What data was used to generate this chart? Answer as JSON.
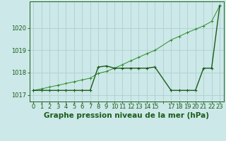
{
  "title": "Graphe pression niveau de la mer (hPa)",
  "bg_color": "#cce8e8",
  "grid_color": "#b0d0d0",
  "line_color_dark": "#1a5c1a",
  "line_color_light": "#2d8c2d",
  "x_hours_s1": [
    0,
    1,
    2,
    3,
    4,
    5,
    6,
    7,
    8,
    9,
    10,
    11,
    12,
    13,
    14,
    15,
    17,
    18,
    19,
    20,
    21,
    22,
    23
  ],
  "series1": [
    1017.2,
    1017.2,
    1017.2,
    1017.2,
    1017.2,
    1017.2,
    1017.2,
    1017.2,
    1018.25,
    1018.3,
    1018.2,
    1018.2,
    1018.2,
    1018.2,
    1018.2,
    1018.25,
    1017.2,
    1017.2,
    1017.2,
    1017.2,
    1018.2,
    1018.2,
    1021.0
  ],
  "x_hours_s2": [
    0,
    1,
    2,
    3,
    4,
    5,
    6,
    7,
    8,
    9,
    10,
    11,
    12,
    13,
    14,
    15,
    17,
    18,
    19,
    20,
    21,
    22,
    23
  ],
  "series2": [
    1017.2,
    1017.27,
    1017.35,
    1017.43,
    1017.51,
    1017.59,
    1017.67,
    1017.75,
    1017.97,
    1018.05,
    1018.2,
    1018.36,
    1018.53,
    1018.69,
    1018.85,
    1019.0,
    1019.47,
    1019.63,
    1019.8,
    1019.95,
    1020.1,
    1020.3,
    1021.0
  ],
  "ylim": [
    1016.7,
    1021.2
  ],
  "yticks": [
    1017,
    1018,
    1019,
    1020
  ],
  "xlim": [
    -0.5,
    23.5
  ],
  "marker_size": 2.5,
  "title_fontsize": 7.5,
  "tick_fontsize": 6.0
}
